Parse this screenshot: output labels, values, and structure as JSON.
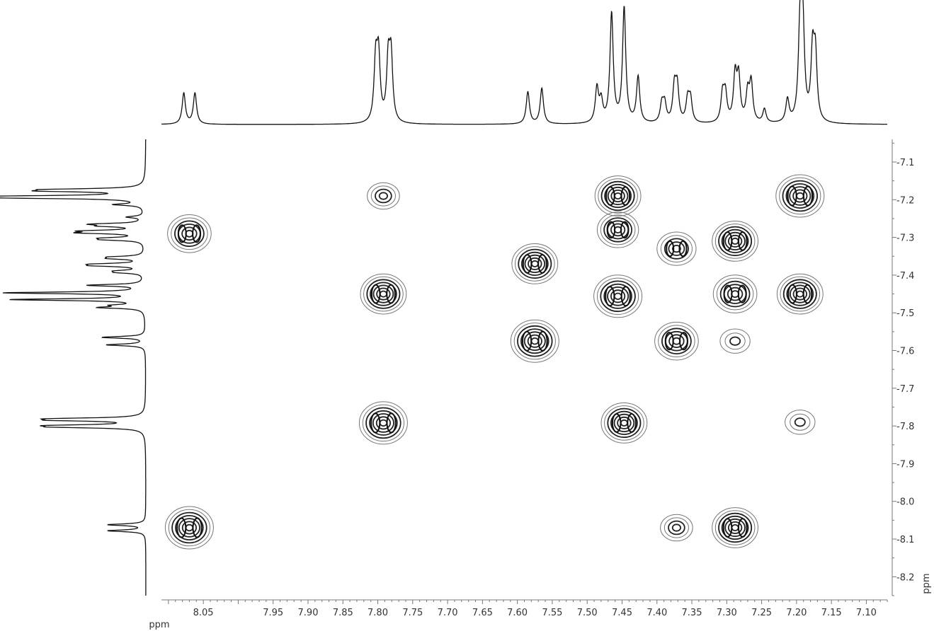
{
  "chart_data": {
    "type": "contour",
    "title": "",
    "x_axis": {
      "label": "ppm",
      "range": [
        8.11,
        7.07
      ],
      "tick_labels": [
        "8.05",
        "7.95",
        "7.90",
        "7.85",
        "7.80",
        "7.75",
        "7.70",
        "7.65",
        "7.60",
        "7.55",
        "7.50",
        "7.45",
        "7.40",
        "7.35",
        "7.30",
        "7.25",
        "7.20",
        "7.15",
        "7.10"
      ],
      "tick_values": [
        8.05,
        7.95,
        7.9,
        7.85,
        7.8,
        7.75,
        7.7,
        7.65,
        7.6,
        7.55,
        7.5,
        7.45,
        7.4,
        7.35,
        7.3,
        7.25,
        7.2,
        7.15,
        7.1
      ]
    },
    "y_axis": {
      "label": "ppm",
      "range": [
        7.04,
        8.25
      ],
      "tick_labels": [
        "7.1",
        "7.2",
        "7.3",
        "7.4",
        "7.5",
        "7.6",
        "7.7",
        "7.8",
        "7.9",
        "8.0",
        "8.1",
        "8.2"
      ],
      "tick_values": [
        7.1,
        7.2,
        7.3,
        7.4,
        7.5,
        7.6,
        7.7,
        7.8,
        7.9,
        8.0,
        8.1,
        8.2
      ]
    },
    "projection_1d_peaks": [
      {
        "shift": 8.078,
        "height": 0.27
      },
      {
        "shift": 8.062,
        "height": 0.27
      },
      {
        "shift": 7.803,
        "height": 0.52
      },
      {
        "shift": 7.799,
        "height": 0.55
      },
      {
        "shift": 7.785,
        "height": 0.52
      },
      {
        "shift": 7.781,
        "height": 0.55
      },
      {
        "shift": 7.585,
        "height": 0.28
      },
      {
        "shift": 7.565,
        "height": 0.31
      },
      {
        "shift": 7.486,
        "height": 0.3
      },
      {
        "shift": 7.48,
        "height": 0.18
      },
      {
        "shift": 7.465,
        "height": 0.95
      },
      {
        "shift": 7.447,
        "height": 1.0
      },
      {
        "shift": 7.427,
        "height": 0.4
      },
      {
        "shift": 7.393,
        "height": 0.16
      },
      {
        "shift": 7.389,
        "height": 0.16
      },
      {
        "shift": 7.375,
        "height": 0.3
      },
      {
        "shift": 7.371,
        "height": 0.3
      },
      {
        "shift": 7.356,
        "height": 0.2
      },
      {
        "shift": 7.352,
        "height": 0.2
      },
      {
        "shift": 7.306,
        "height": 0.24
      },
      {
        "shift": 7.302,
        "height": 0.24
      },
      {
        "shift": 7.288,
        "height": 0.4
      },
      {
        "shift": 7.283,
        "height": 0.38
      },
      {
        "shift": 7.27,
        "height": 0.25
      },
      {
        "shift": 7.265,
        "height": 0.34
      },
      {
        "shift": 7.246,
        "height": 0.12
      },
      {
        "shift": 7.213,
        "height": 0.2
      },
      {
        "shift": 7.195,
        "height": 0.8
      },
      {
        "shift": 7.191,
        "height": 0.82
      },
      {
        "shift": 7.177,
        "height": 0.58
      },
      {
        "shift": 7.173,
        "height": 0.55
      }
    ],
    "cross_peaks": [
      {
        "x": 8.07,
        "y": 7.29,
        "intensity": 0.8
      },
      {
        "x": 8.07,
        "y": 8.07,
        "intensity": 1.0
      },
      {
        "x": 7.792,
        "y": 7.19,
        "intensity": 0.3
      },
      {
        "x": 7.792,
        "y": 7.45,
        "intensity": 0.9
      },
      {
        "x": 7.792,
        "y": 7.792,
        "intensity": 1.0
      },
      {
        "x": 7.575,
        "y": 7.37,
        "intensity": 0.9
      },
      {
        "x": 7.575,
        "y": 7.575,
        "intensity": 1.0
      },
      {
        "x": 7.456,
        "y": 7.19,
        "intensity": 0.9
      },
      {
        "x": 7.456,
        "y": 7.28,
        "intensity": 0.7
      },
      {
        "x": 7.456,
        "y": 7.456,
        "intensity": 1.0
      },
      {
        "x": 7.447,
        "y": 7.792,
        "intensity": 0.9
      },
      {
        "x": 7.372,
        "y": 7.33,
        "intensity": 0.6
      },
      {
        "x": 7.372,
        "y": 7.575,
        "intensity": 0.8
      },
      {
        "x": 7.372,
        "y": 8.07,
        "intensity": 0.3
      },
      {
        "x": 7.288,
        "y": 7.31,
        "intensity": 0.9
      },
      {
        "x": 7.288,
        "y": 7.45,
        "intensity": 0.8
      },
      {
        "x": 7.288,
        "y": 7.575,
        "intensity": 0.2
      },
      {
        "x": 7.288,
        "y": 8.07,
        "intensity": 0.9
      },
      {
        "x": 7.195,
        "y": 7.19,
        "intensity": 1.0
      },
      {
        "x": 7.195,
        "y": 7.45,
        "intensity": 0.9
      },
      {
        "x": 7.195,
        "y": 7.79,
        "intensity": 0.2
      }
    ],
    "legend": "none",
    "grid": false
  }
}
